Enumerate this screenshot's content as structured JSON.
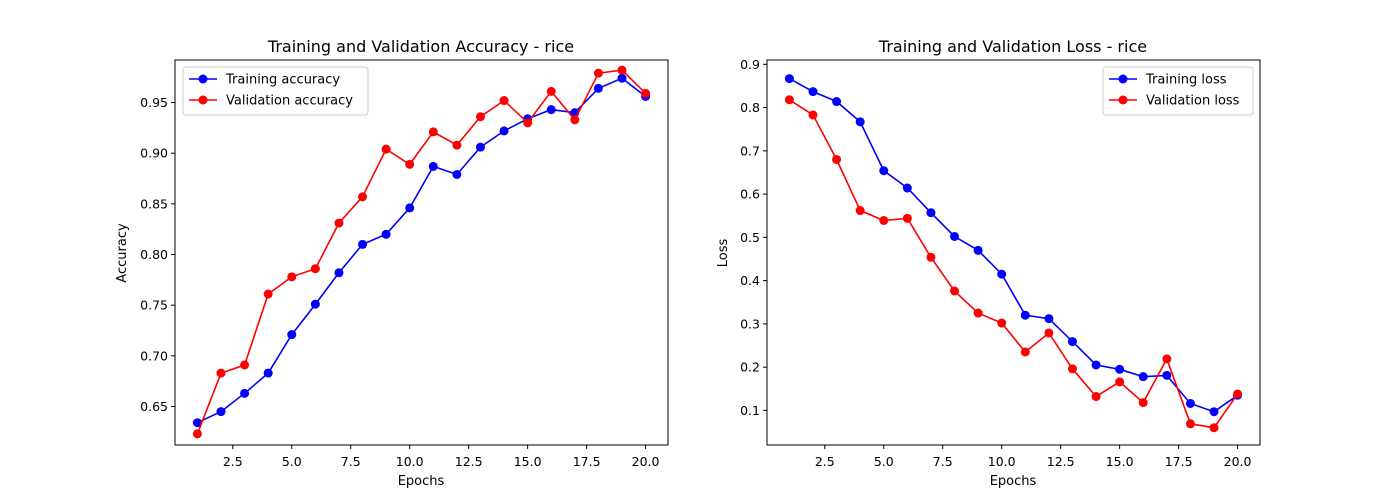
{
  "chart_data": [
    {
      "type": "line",
      "title": "Training and Validation Accuracy - rice",
      "xlabel": "Epochs",
      "ylabel": "Accuracy",
      "xlim": [
        0.05,
        20.95
      ],
      "ylim": [
        0.612,
        0.992
      ],
      "x_ticks": [
        2.5,
        5.0,
        7.5,
        10.0,
        12.5,
        15.0,
        17.5,
        20.0
      ],
      "x_tick_labels": [
        "2.5",
        "5.0",
        "7.5",
        "10.0",
        "12.5",
        "15.0",
        "17.5",
        "20.0"
      ],
      "y_ticks": [
        0.65,
        0.7,
        0.75,
        0.8,
        0.85,
        0.9,
        0.95
      ],
      "y_tick_labels": [
        "0.65",
        "0.70",
        "0.75",
        "0.80",
        "0.85",
        "0.90",
        "0.95"
      ],
      "grid": false,
      "legend_position": "upper-left",
      "x": [
        1,
        2,
        3,
        4,
        5,
        6,
        7,
        8,
        9,
        10,
        11,
        12,
        13,
        14,
        15,
        16,
        17,
        18,
        19,
        20
      ],
      "series": [
        {
          "name": "Training accuracy",
          "color": "#0000ff",
          "values": [
            0.634,
            0.645,
            0.663,
            0.683,
            0.721,
            0.751,
            0.782,
            0.81,
            0.82,
            0.846,
            0.887,
            0.879,
            0.906,
            0.922,
            0.934,
            0.943,
            0.94,
            0.964,
            0.974,
            0.956
          ]
        },
        {
          "name": "Validation accuracy",
          "color": "#ff0000",
          "values": [
            0.623,
            0.683,
            0.691,
            0.761,
            0.778,
            0.786,
            0.831,
            0.857,
            0.904,
            0.889,
            0.921,
            0.908,
            0.936,
            0.952,
            0.93,
            0.961,
            0.933,
            0.979,
            0.982,
            0.959
          ]
        }
      ]
    },
    {
      "type": "line",
      "title": "Training and Validation Loss - rice",
      "xlabel": "Epochs",
      "ylabel": "Loss",
      "xlim": [
        0.05,
        20.95
      ],
      "ylim": [
        0.02,
        0.91
      ],
      "x_ticks": [
        2.5,
        5.0,
        7.5,
        10.0,
        12.5,
        15.0,
        17.5,
        20.0
      ],
      "x_tick_labels": [
        "2.5",
        "5.0",
        "7.5",
        "10.0",
        "12.5",
        "15.0",
        "17.5",
        "20.0"
      ],
      "y_ticks": [
        0.1,
        0.2,
        0.3,
        0.4,
        0.5,
        0.6,
        0.7,
        0.8,
        0.9
      ],
      "y_tick_labels": [
        "0.1",
        "0.2",
        "0.3",
        "0.4",
        "0.5",
        "0.6",
        "0.7",
        "0.8",
        "0.9"
      ],
      "grid": false,
      "legend_position": "upper-right",
      "x": [
        1,
        2,
        3,
        4,
        5,
        6,
        7,
        8,
        9,
        10,
        11,
        12,
        13,
        14,
        15,
        16,
        17,
        18,
        19,
        20
      ],
      "series": [
        {
          "name": "Training loss",
          "color": "#0000ff",
          "values": [
            0.867,
            0.837,
            0.814,
            0.767,
            0.654,
            0.614,
            0.557,
            0.502,
            0.47,
            0.415,
            0.32,
            0.312,
            0.259,
            0.205,
            0.195,
            0.178,
            0.181,
            0.116,
            0.097,
            0.135
          ]
        },
        {
          "name": "Validation loss",
          "color": "#ff0000",
          "values": [
            0.818,
            0.783,
            0.68,
            0.562,
            0.539,
            0.544,
            0.454,
            0.376,
            0.325,
            0.302,
            0.235,
            0.279,
            0.196,
            0.132,
            0.166,
            0.118,
            0.219,
            0.069,
            0.06,
            0.138
          ]
        }
      ]
    }
  ]
}
